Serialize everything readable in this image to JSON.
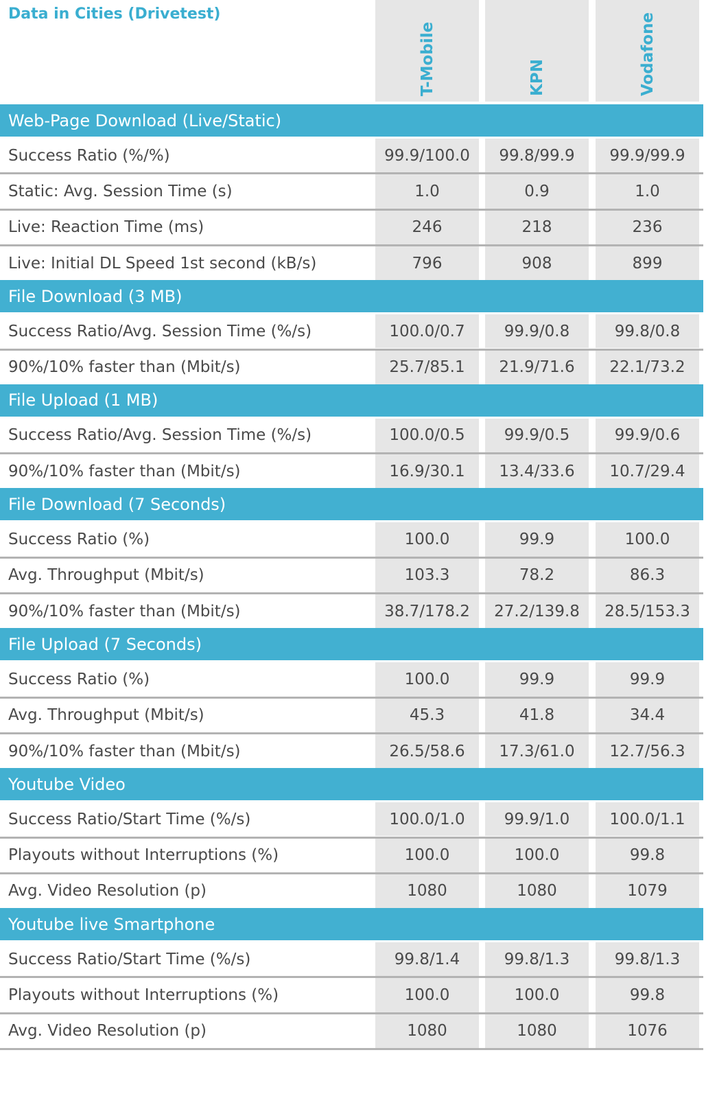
{
  "title": "Data in Cities (Drivetest)",
  "operators": [
    "T-Mobile",
    "KPN",
    "Vodafone"
  ],
  "colors": {
    "accent": "#42b0d1",
    "title": "#3aaed0",
    "cell_bg": "#e6e6e6",
    "separator": "#b3b3b3"
  },
  "chart_data": {
    "type": "table",
    "title": "Data in Cities (Drivetest)",
    "columns": [
      "T-Mobile",
      "KPN",
      "Vodafone"
    ],
    "sections": [
      {
        "name": "Web-Page Download (Live/Static)",
        "rows": [
          {
            "label": "Success Ratio (%/%)",
            "values": [
              "99.9/100.0",
              "99.8/99.9",
              "99.9/99.9"
            ]
          },
          {
            "label": "Static: Avg. Session Time (s)",
            "values": [
              "1.0",
              "0.9",
              "1.0"
            ]
          },
          {
            "label": "Live: Reaction Time (ms)",
            "values": [
              "246",
              "218",
              "236"
            ]
          },
          {
            "label": "Live: Initial DL Speed 1st second (kB/s)",
            "values": [
              "796",
              "908",
              "899"
            ]
          }
        ]
      },
      {
        "name": "File Download (3 MB)",
        "rows": [
          {
            "label": "Success Ratio/Avg. Session Time (%/s)",
            "values": [
              "100.0/0.7",
              "99.9/0.8",
              "99.8/0.8"
            ]
          },
          {
            "label": "90%/10% faster than (Mbit/s)",
            "values": [
              "25.7/85.1",
              "21.9/71.6",
              "22.1/73.2"
            ]
          }
        ]
      },
      {
        "name": "File Upload (1 MB)",
        "rows": [
          {
            "label": "Success Ratio/Avg. Session Time (%/s)",
            "values": [
              "100.0/0.5",
              "99.9/0.5",
              "99.9/0.6"
            ]
          },
          {
            "label": "90%/10% faster than (Mbit/s)",
            "values": [
              "16.9/30.1",
              "13.4/33.6",
              "10.7/29.4"
            ]
          }
        ]
      },
      {
        "name": "File Download (7 Seconds)",
        "rows": [
          {
            "label": "Success Ratio (%)",
            "values": [
              "100.0",
              "99.9",
              "100.0"
            ]
          },
          {
            "label": "Avg. Throughput (Mbit/s)",
            "values": [
              "103.3",
              "78.2",
              "86.3"
            ]
          },
          {
            "label": "90%/10% faster than (Mbit/s)",
            "values": [
              "38.7/178.2",
              "27.2/139.8",
              "28.5/153.3"
            ]
          }
        ]
      },
      {
        "name": "File Upload (7 Seconds)",
        "rows": [
          {
            "label": "Success Ratio (%)",
            "values": [
              "100.0",
              "99.9",
              "99.9"
            ]
          },
          {
            "label": "Avg. Throughput (Mbit/s)",
            "values": [
              "45.3",
              "41.8",
              "34.4"
            ]
          },
          {
            "label": "90%/10% faster than (Mbit/s)",
            "values": [
              "26.5/58.6",
              "17.3/61.0",
              "12.7/56.3"
            ]
          }
        ]
      },
      {
        "name": "Youtube Video",
        "rows": [
          {
            "label": "Success Ratio/Start Time (%/s)",
            "values": [
              "100.0/1.0",
              "99.9/1.0",
              "100.0/1.1"
            ]
          },
          {
            "label": "Playouts without Interruptions (%)",
            "values": [
              "100.0",
              "100.0",
              "99.8"
            ]
          },
          {
            "label": "Avg. Video Resolution (p)",
            "values": [
              "1080",
              "1080",
              "1079"
            ]
          }
        ]
      },
      {
        "name": "Youtube live Smartphone",
        "rows": [
          {
            "label": "Success Ratio/Start Time (%/s)",
            "values": [
              "99.8/1.4",
              "99.8/1.3",
              "99.8/1.3"
            ]
          },
          {
            "label": "Playouts without Interruptions (%)",
            "values": [
              "100.0",
              "100.0",
              "99.8"
            ]
          },
          {
            "label": "Avg. Video Resolution (p)",
            "values": [
              "1080",
              "1080",
              "1076"
            ]
          }
        ]
      }
    ]
  }
}
